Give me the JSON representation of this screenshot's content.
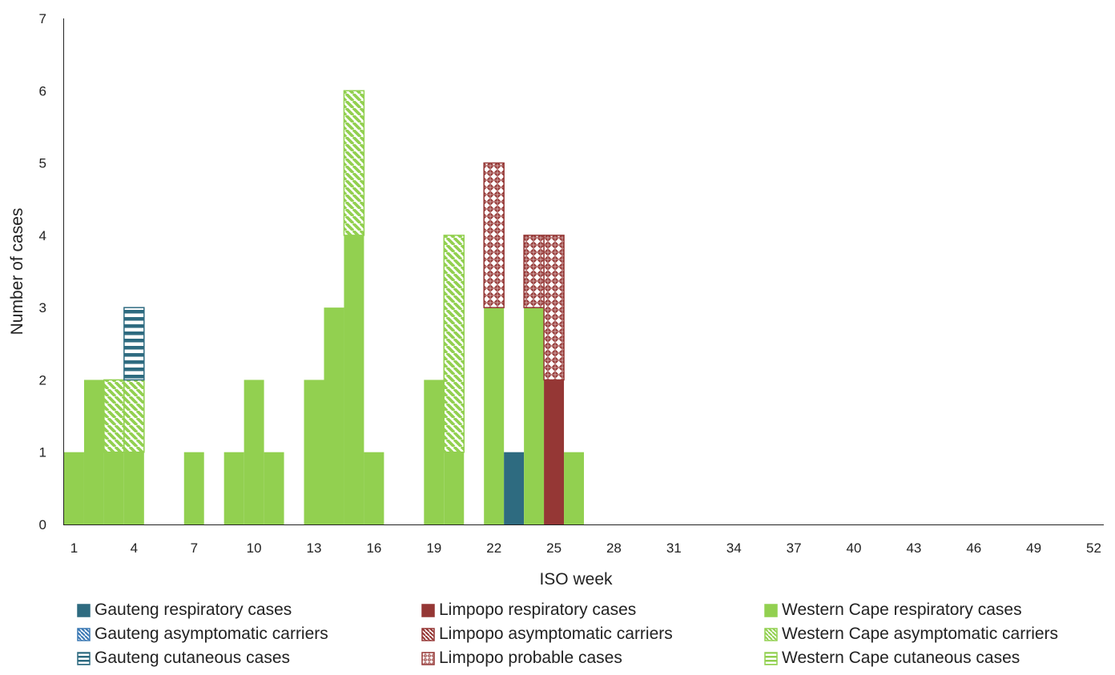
{
  "chart_data": {
    "type": "bar",
    "stacked": true,
    "xlabel": "ISO week",
    "ylabel": "Number of cases",
    "ylim": [
      0,
      7
    ],
    "yticks": [
      "0",
      "1",
      "2",
      "3",
      "4",
      "5",
      "6",
      "7"
    ],
    "x": [
      1,
      2,
      3,
      4,
      5,
      6,
      7,
      8,
      9,
      10,
      11,
      12,
      13,
      14,
      15,
      16,
      17,
      18,
      19,
      20,
      21,
      22,
      23,
      24,
      25,
      26,
      27,
      28,
      29,
      30,
      31,
      32,
      33,
      34,
      35,
      36,
      37,
      38,
      39,
      40,
      41,
      42,
      43,
      44,
      45,
      46,
      47,
      48,
      49,
      50,
      51,
      52
    ],
    "xtick_labels": [
      "1",
      "4",
      "7",
      "10",
      "13",
      "16",
      "19",
      "22",
      "25",
      "28",
      "31",
      "34",
      "37",
      "40",
      "43",
      "46",
      "49",
      "52"
    ],
    "xtick_weeks": [
      1,
      4,
      7,
      10,
      13,
      16,
      19,
      22,
      25,
      28,
      31,
      34,
      37,
      40,
      43,
      46,
      49,
      52
    ],
    "grid": false,
    "legend_position": "bottom",
    "series": [
      {
        "name": "Gauteng respiratory cases",
        "color": "#2e6b80",
        "pattern": "solid",
        "values": [
          0,
          0,
          0,
          0,
          0,
          0,
          0,
          0,
          0,
          0,
          0,
          0,
          0,
          0,
          0,
          0,
          0,
          0,
          0,
          0,
          0,
          0,
          1,
          0,
          0,
          0,
          0,
          0,
          0,
          0,
          0,
          0,
          0,
          0,
          0,
          0,
          0,
          0,
          0,
          0,
          0,
          0,
          0,
          0,
          0,
          0,
          0,
          0,
          0,
          0,
          0,
          0
        ]
      },
      {
        "name": "Gauteng asymptomatic carriers",
        "color": "#3a78b4",
        "pattern": "diagonal",
        "values": [
          0,
          0,
          0,
          0,
          0,
          0,
          0,
          0,
          0,
          0,
          0,
          0,
          0,
          0,
          0,
          0,
          0,
          0,
          0,
          0,
          0,
          0,
          0,
          0,
          0,
          0,
          0,
          0,
          0,
          0,
          0,
          0,
          0,
          0,
          0,
          0,
          0,
          0,
          0,
          0,
          0,
          0,
          0,
          0,
          0,
          0,
          0,
          0,
          0,
          0,
          0,
          0
        ]
      },
      {
        "name": "Gauteng cutaneous cases",
        "color": "#2e6b80",
        "pattern": "horizontal",
        "values": [
          0,
          0,
          0,
          1,
          0,
          0,
          0,
          0,
          0,
          0,
          0,
          0,
          0,
          0,
          0,
          0,
          0,
          0,
          0,
          0,
          0,
          0,
          0,
          0,
          0,
          0,
          0,
          0,
          0,
          0,
          0,
          0,
          0,
          0,
          0,
          0,
          0,
          0,
          0,
          0,
          0,
          0,
          0,
          0,
          0,
          0,
          0,
          0,
          0,
          0,
          0,
          0
        ]
      },
      {
        "name": "Limpopo respiratory cases",
        "color": "#953735",
        "pattern": "solid",
        "values": [
          0,
          0,
          0,
          0,
          0,
          0,
          0,
          0,
          0,
          0,
          0,
          0,
          0,
          0,
          0,
          0,
          0,
          0,
          0,
          0,
          0,
          0,
          0,
          0,
          2,
          0,
          0,
          0,
          0,
          0,
          0,
          0,
          0,
          0,
          0,
          0,
          0,
          0,
          0,
          0,
          0,
          0,
          0,
          0,
          0,
          0,
          0,
          0,
          0,
          0,
          0,
          0
        ]
      },
      {
        "name": "Limpopo asymptomatic carriers",
        "color": "#953735",
        "pattern": "diagonal",
        "values": [
          0,
          0,
          0,
          0,
          0,
          0,
          0,
          0,
          0,
          0,
          0,
          0,
          0,
          0,
          0,
          0,
          0,
          0,
          0,
          0,
          0,
          0,
          0,
          0,
          0,
          0,
          0,
          0,
          0,
          0,
          0,
          0,
          0,
          0,
          0,
          0,
          0,
          0,
          0,
          0,
          0,
          0,
          0,
          0,
          0,
          0,
          0,
          0,
          0,
          0,
          0,
          0
        ]
      },
      {
        "name": "Limpopo probable cases",
        "color": "#953735",
        "pattern": "diamonds",
        "values": [
          0,
          0,
          0,
          0,
          0,
          0,
          0,
          0,
          0,
          0,
          0,
          0,
          0,
          0,
          0,
          0,
          0,
          0,
          0,
          0,
          0,
          2,
          0,
          1,
          2,
          0,
          0,
          0,
          0,
          0,
          0,
          0,
          0,
          0,
          0,
          0,
          0,
          0,
          0,
          0,
          0,
          0,
          0,
          0,
          0,
          0,
          0,
          0,
          0,
          0,
          0,
          0
        ]
      },
      {
        "name": "Western Cape respiratory cases",
        "color": "#92d050",
        "pattern": "solid",
        "values": [
          1,
          2,
          1,
          1,
          0,
          0,
          1,
          0,
          1,
          2,
          1,
          0,
          2,
          3,
          4,
          1,
          0,
          0,
          2,
          1,
          0,
          3,
          0,
          3,
          0,
          1,
          0,
          0,
          0,
          0,
          0,
          0,
          0,
          0,
          0,
          0,
          0,
          0,
          0,
          0,
          0,
          0,
          0,
          0,
          0,
          0,
          0,
          0,
          0,
          0,
          0,
          0
        ]
      },
      {
        "name": "Western Cape asymptomatic carriers",
        "color": "#92d050",
        "pattern": "diagonal",
        "values": [
          0,
          0,
          1,
          1,
          0,
          0,
          0,
          0,
          0,
          0,
          0,
          0,
          0,
          0,
          2,
          0,
          0,
          0,
          0,
          3,
          0,
          0,
          0,
          0,
          0,
          0,
          0,
          0,
          0,
          0,
          0,
          0,
          0,
          0,
          0,
          0,
          0,
          0,
          0,
          0,
          0,
          0,
          0,
          0,
          0,
          0,
          0,
          0,
          0,
          0,
          0,
          0
        ]
      },
      {
        "name": "Western Cape cutaneous cases",
        "color": "#92d050",
        "pattern": "horizontal",
        "values": [
          0,
          0,
          0,
          0,
          0,
          0,
          0,
          0,
          0,
          0,
          0,
          0,
          0,
          0,
          0,
          0,
          0,
          0,
          0,
          0,
          0,
          0,
          0,
          0,
          0,
          0,
          0,
          0,
          0,
          0,
          0,
          0,
          0,
          0,
          0,
          0,
          0,
          0,
          0,
          0,
          0,
          0,
          0,
          0,
          0,
          0,
          0,
          0,
          0,
          0,
          0,
          0
        ]
      }
    ],
    "stack_order": [
      6,
      7,
      0,
      2,
      3,
      5
    ]
  },
  "legend_layout": {
    "columns": [
      [
        0,
        1,
        2
      ],
      [
        3,
        4,
        5
      ],
      [
        6,
        7,
        8
      ]
    ]
  }
}
